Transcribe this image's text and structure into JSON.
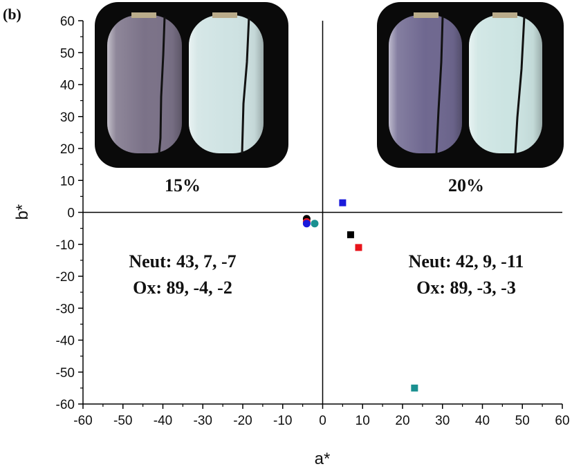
{
  "panel_label": "(b)",
  "chart_data": {
    "type": "scatter",
    "xlabel": "a*",
    "ylabel": "b*",
    "xlim": [
      -60,
      60
    ],
    "ylim": [
      -60,
      60
    ],
    "x_ticks": [
      "-60",
      "-50",
      "-40",
      "-30",
      "-20",
      "-10",
      "0",
      "10",
      "20",
      "30",
      "40",
      "50",
      "60"
    ],
    "y_ticks": [
      "60",
      "50",
      "40",
      "30",
      "20",
      "10",
      "0",
      "-10",
      "-20",
      "-30",
      "-40",
      "-50",
      "-60"
    ],
    "grid": false,
    "series": [
      {
        "group": "15%",
        "marker": "circle",
        "color": "#000000",
        "x": -4,
        "y": -2
      },
      {
        "group": "15%",
        "marker": "circle",
        "color": "#e8141b",
        "x": -4,
        "y": -3
      },
      {
        "group": "15%",
        "marker": "circle",
        "color": "#1a1adb",
        "x": -4,
        "y": -3.5
      },
      {
        "group": "15%",
        "marker": "circle",
        "color": "#1a9090",
        "x": -2,
        "y": -3.5
      },
      {
        "group": "20%",
        "marker": "square",
        "color": "#1a1adb",
        "x": 5,
        "y": 3
      },
      {
        "group": "20%",
        "marker": "square",
        "color": "#000000",
        "x": 7,
        "y": -7
      },
      {
        "group": "20%",
        "marker": "square",
        "color": "#e8141b",
        "x": 9,
        "y": -11
      },
      {
        "group": "20%",
        "marker": "square",
        "color": "#1a9090",
        "x": 23,
        "y": -55
      }
    ],
    "annotations": {
      "left_label": "15%",
      "right_label": "20%",
      "left_neut": "Neut: 43, 7, -7",
      "left_ox": "Ox: 89, -4, -2",
      "right_neut": "Neut: 42, 9, -11",
      "right_ox": "Ox: 89, -3, -3"
    },
    "photos": {
      "left": {
        "neutral_tint": "#7b7288",
        "oxidized_tint": "#cfe3e3"
      },
      "right": {
        "neutral_tint": "#6f6890",
        "oxidized_tint": "#cce4e2"
      }
    }
  }
}
